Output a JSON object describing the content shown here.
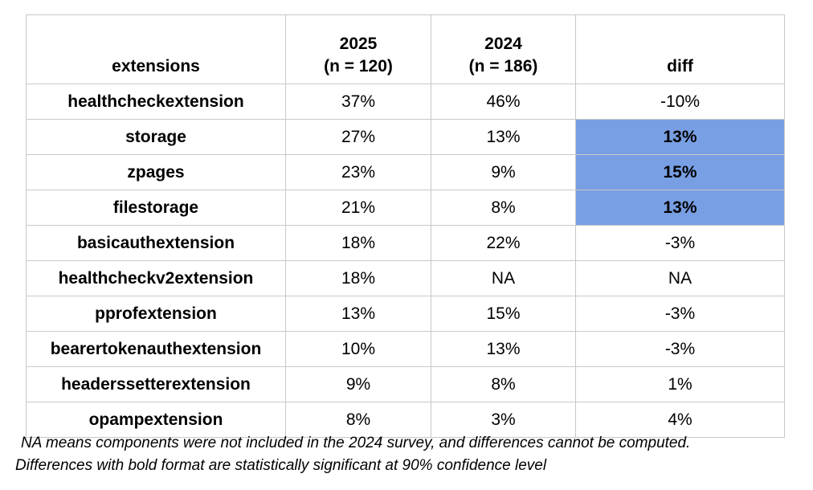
{
  "table": {
    "header": [
      [
        "extensions"
      ],
      [
        "2025",
        "(n = 120)"
      ],
      [
        "2024",
        "(n = 186)"
      ],
      [
        "diff"
      ]
    ],
    "rows": [
      {
        "cells": [
          "healthcheckextension",
          "37%",
          "46%",
          "-10%"
        ],
        "significant": false
      },
      {
        "cells": [
          "storage",
          "27%",
          "13%",
          "13%"
        ],
        "significant": true
      },
      {
        "cells": [
          "zpages",
          "23%",
          "9%",
          "15%"
        ],
        "significant": true
      },
      {
        "cells": [
          "filestorage",
          "21%",
          "8%",
          "13%"
        ],
        "significant": true
      },
      {
        "cells": [
          "basicauthextension",
          "18%",
          "22%",
          "-3%"
        ],
        "significant": false
      },
      {
        "cells": [
          "healthcheckv2extension",
          "18%",
          "NA",
          "NA"
        ],
        "significant": false
      },
      {
        "cells": [
          "pprofextension",
          "13%",
          "15%",
          "-3%"
        ],
        "significant": false
      },
      {
        "cells": [
          "bearertokenauthextension",
          "10%",
          "13%",
          "-3%"
        ],
        "significant": false
      },
      {
        "cells": [
          "headerssetterextension",
          "9%",
          "8%",
          "1%"
        ],
        "significant": false
      },
      {
        "cells": [
          "opampextension",
          "8%",
          "3%",
          "4%"
        ],
        "significant": false
      }
    ],
    "highlight_color": "#789fe3"
  },
  "notes": [
    "NA means components were not included in the 2024 survey, and differences cannot be computed.",
    "Differences with bold format are statistically significant at 90% confidence level"
  ]
}
